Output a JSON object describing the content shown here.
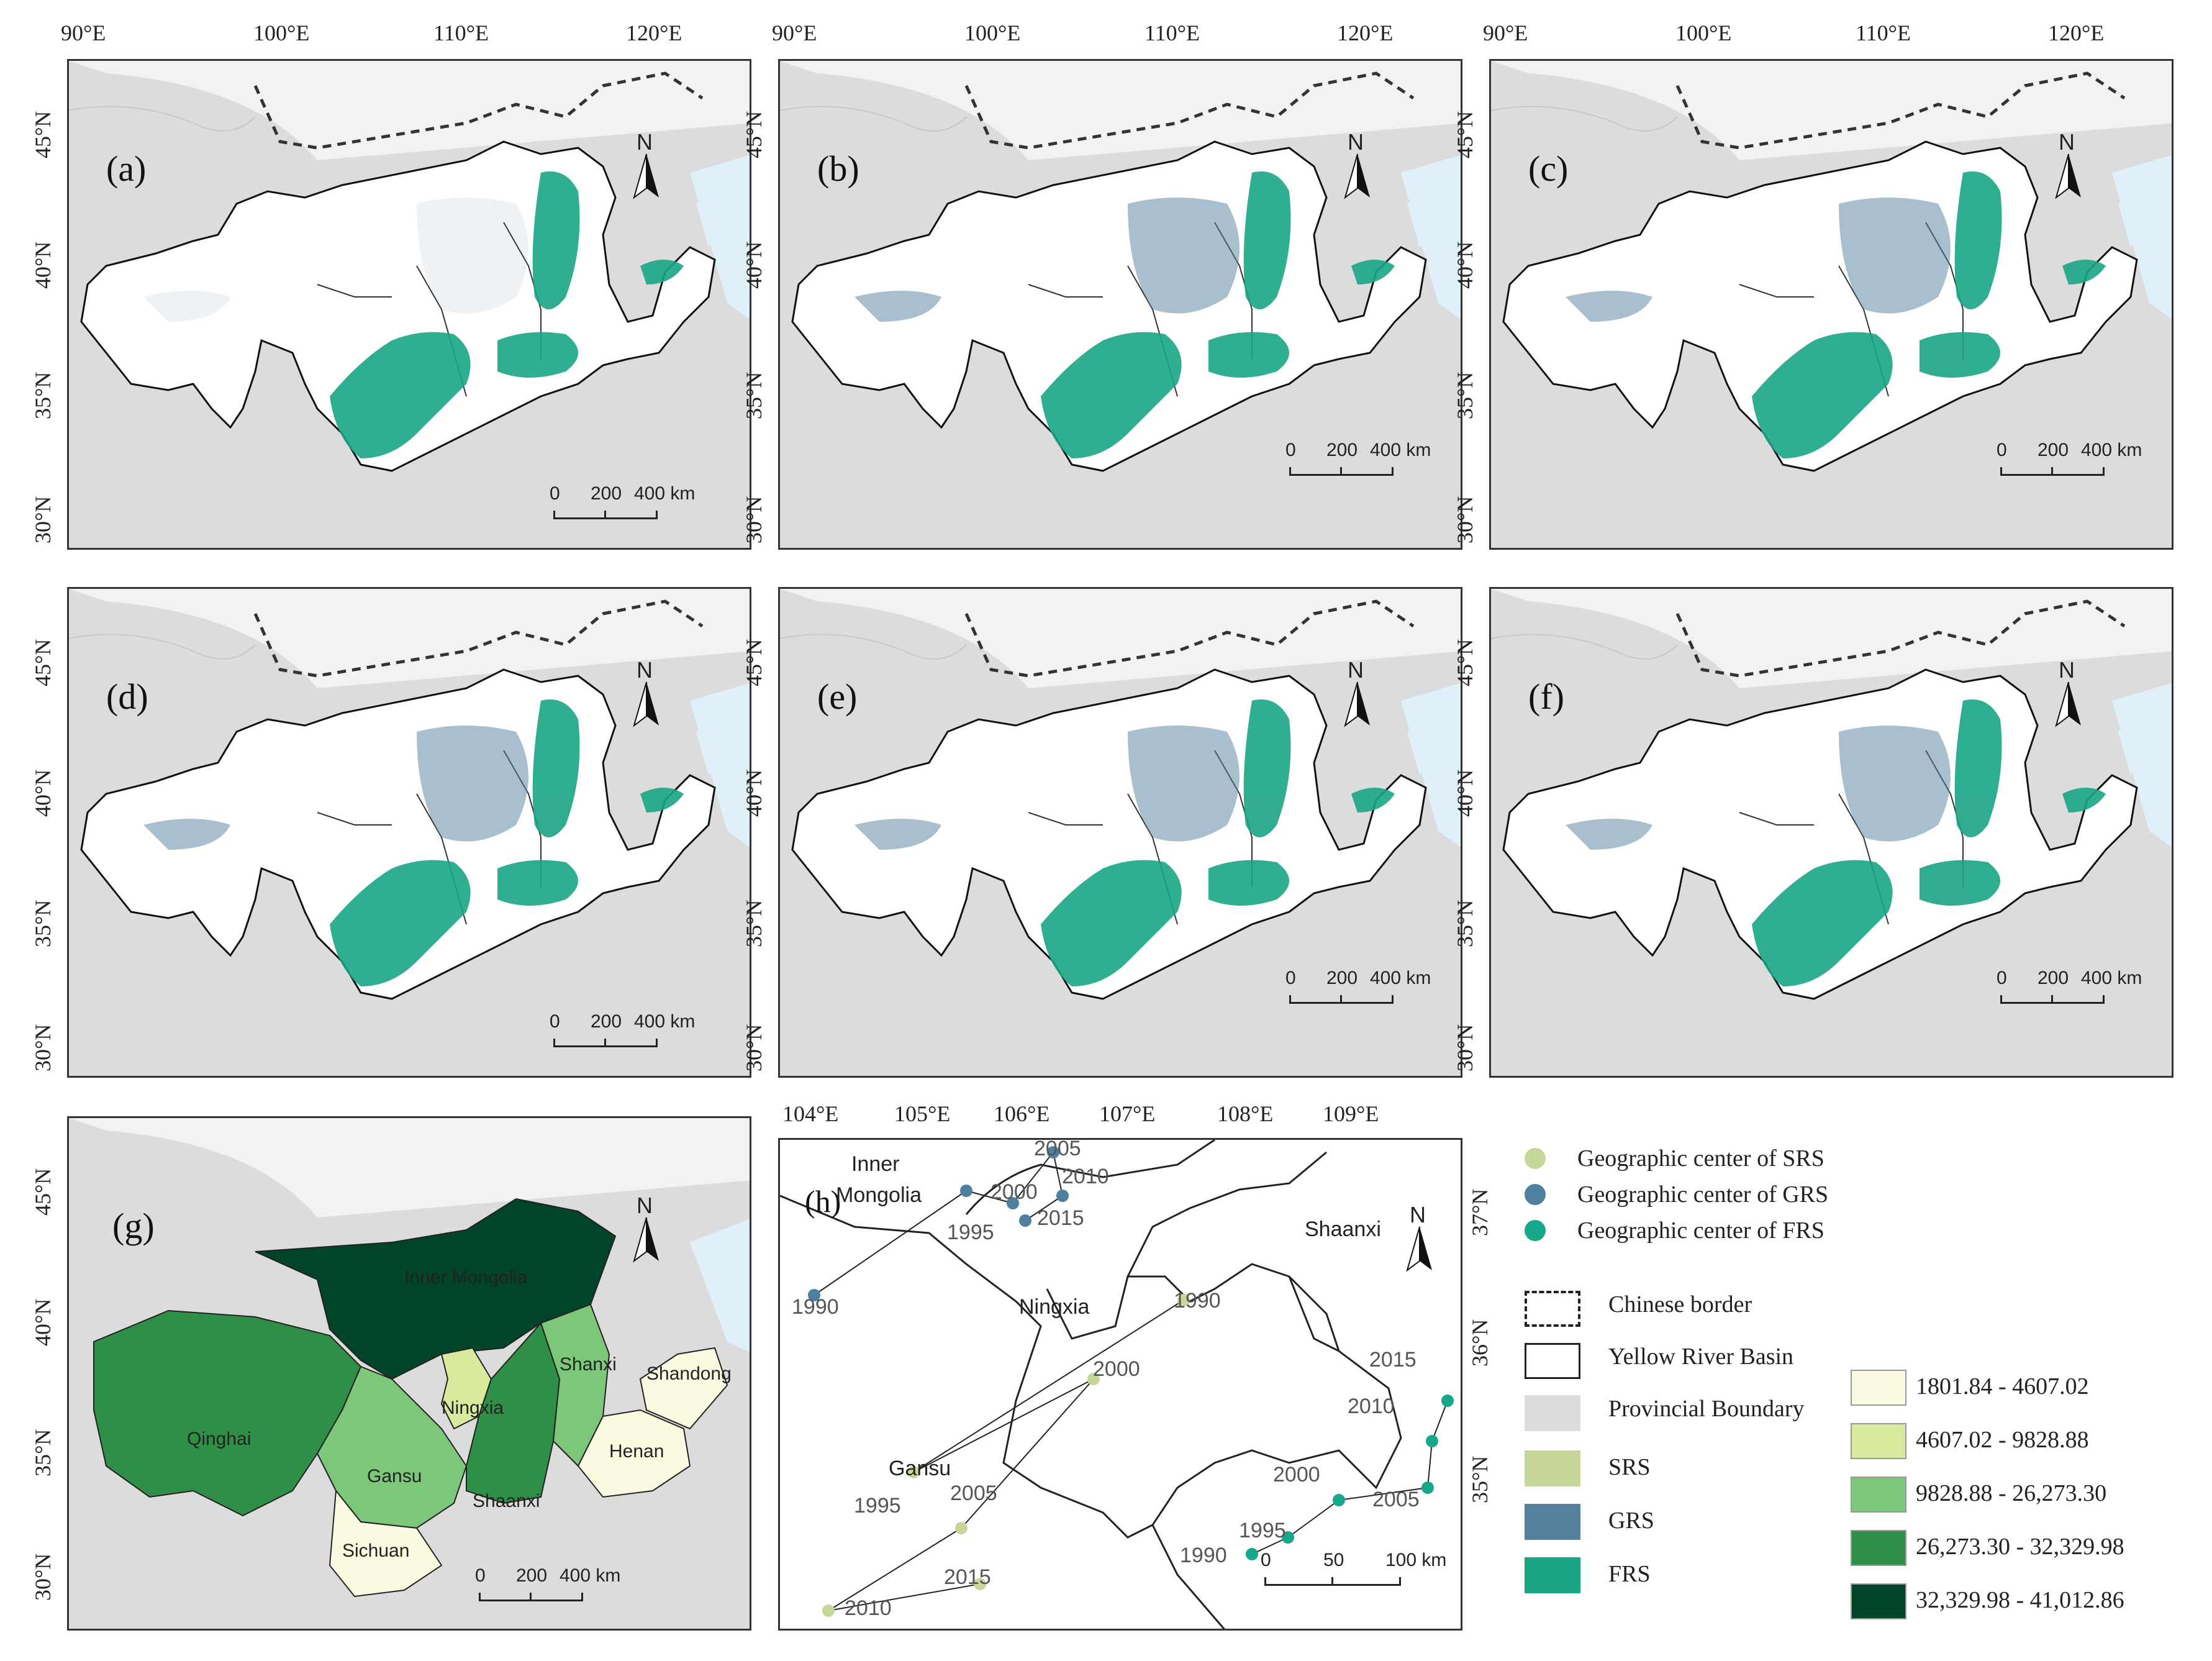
{
  "lon_ticks_top": [
    "90°E",
    "100°E",
    "110°E",
    "120°E"
  ],
  "lat_ticks": [
    "45°N",
    "40°N",
    "35°N",
    "30°N"
  ],
  "panels": [
    {
      "label": "(a)",
      "scale": [
        "0",
        "200",
        "400 km"
      ]
    },
    {
      "label": "(b)",
      "scale": [
        "0",
        "200",
        "400 km"
      ]
    },
    {
      "label": "(c)",
      "scale": [
        "0",
        "200",
        "400 km"
      ]
    },
    {
      "label": "(d)",
      "scale": [
        "0",
        "200",
        "400 km"
      ]
    },
    {
      "label": "(e)",
      "scale": [
        "0",
        "200",
        "400 km"
      ]
    },
    {
      "label": "(f)",
      "scale": [
        "0",
        "200",
        "400 km"
      ]
    },
    {
      "label": "(g)",
      "scale": [
        "0",
        "200",
        "400 km"
      ]
    }
  ],
  "north_label": "N",
  "panel_g": {
    "provinces": [
      "Inner Mongolia",
      "Ningxia",
      "Shanxi",
      "Shandong",
      "Henan",
      "Qinghai",
      "Gansu",
      "Shaanxi",
      "Sichuan"
    ]
  },
  "panel_h": {
    "label": "(h)",
    "lon_ticks": [
      "104°E",
      "105°E",
      "106°E",
      "107°E",
      "108°E",
      "109°E"
    ],
    "lat_ticks": [
      "37°N",
      "36°N",
      "35°N"
    ],
    "regions": [
      "Inner",
      "Mongolia",
      "Ningxia",
      "Shaanxi",
      "Gansu"
    ],
    "scale": [
      "0",
      "50",
      "100 km"
    ],
    "GRS_years": [
      "1990",
      "1995",
      "2000",
      "2005",
      "2010",
      "2015"
    ],
    "SRS_years": [
      "1990",
      "1995",
      "2000",
      "2005",
      "2010",
      "2015"
    ],
    "FRS_years": [
      "1990",
      "1995",
      "2000",
      "2005",
      "2010",
      "2015"
    ]
  },
  "legend": {
    "centers": [
      {
        "label": "Geographic center of SRS",
        "color": "#c5d89a"
      },
      {
        "label": "Geographic center of GRS",
        "color": "#4f7f9f"
      },
      {
        "label": "Geographic center of FRS",
        "color": "#17a88a"
      }
    ],
    "lines": [
      {
        "label": "Chinese border"
      },
      {
        "label": "Yellow River Basin"
      },
      {
        "label": "Provincial Boundary"
      }
    ],
    "classes": [
      {
        "label": "SRS",
        "color": "#c7d79a"
      },
      {
        "label": "GRS",
        "color": "#557f9b"
      },
      {
        "label": "FRS",
        "color": "#1aa585"
      }
    ],
    "ranges": [
      {
        "label": "1801.84 - 4607.02",
        "color": "#fbfbe2"
      },
      {
        "label": "4607.02 - 9828.88",
        "color": "#d7ea9e"
      },
      {
        "label": "9828.88 - 26,273.30",
        "color": "#7cc77a"
      },
      {
        "label": "26,273.30 - 32,329.98",
        "color": "#2f8f46"
      },
      {
        "label": "32,329.98 - 41,012.86",
        "color": "#00442a"
      }
    ]
  },
  "colors": {
    "gray": "#dcdcdc",
    "basin": "#ffffff",
    "sea": "#dff0fb",
    "frs": "#1aa585",
    "grs": "#557f9b"
  }
}
